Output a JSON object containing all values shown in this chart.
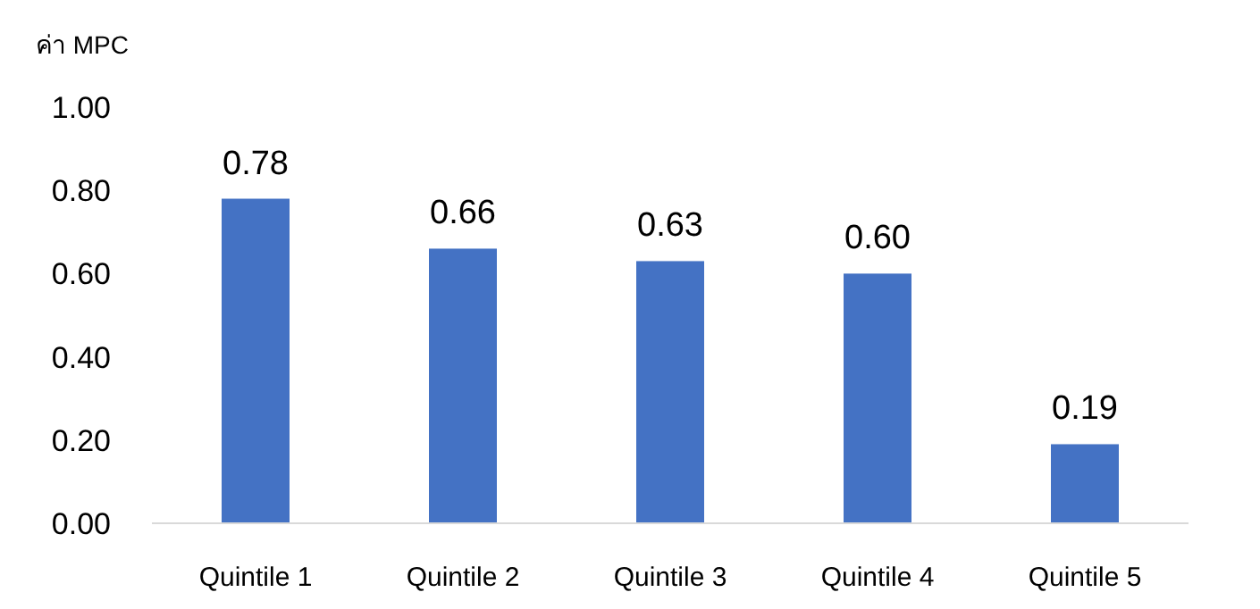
{
  "chart_data": {
    "type": "bar",
    "ylabel": "ค่า MPC",
    "categories": [
      "Quintile 1",
      "Quintile 2",
      "Quintile 3",
      "Quintile 4",
      "Quintile 5"
    ],
    "values": [
      0.78,
      0.66,
      0.63,
      0.6,
      0.19
    ],
    "value_labels": [
      "0.78",
      "0.66",
      "0.63",
      "0.60",
      "0.19"
    ],
    "color": "#4472c4",
    "ylim": [
      0,
      1
    ],
    "yticks": [
      {
        "value": 0,
        "label": "0.00"
      },
      {
        "value": 0.2,
        "label": "0.20"
      },
      {
        "value": 0.4,
        "label": "0.40"
      },
      {
        "value": 0.6,
        "label": "0.60"
      },
      {
        "value": 0.8,
        "label": "0.80"
      },
      {
        "value": 1,
        "label": "1.00"
      }
    ],
    "grid": false
  }
}
